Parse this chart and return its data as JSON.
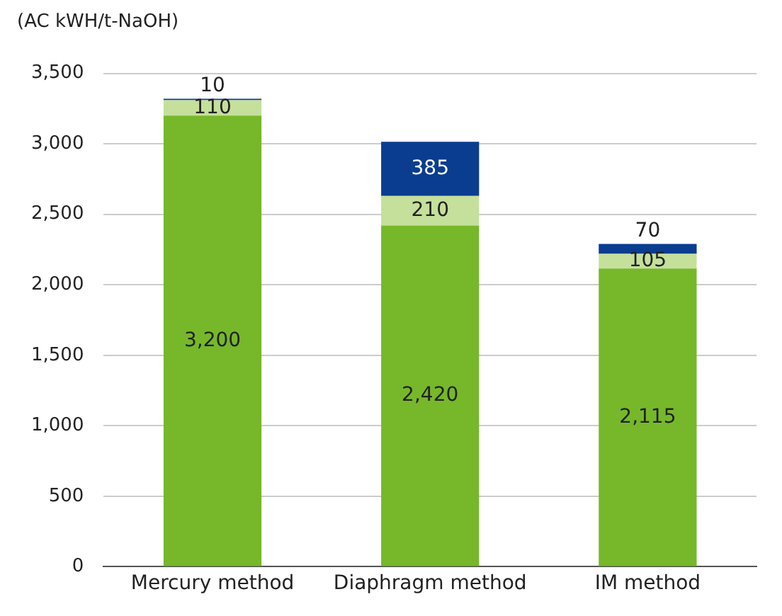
{
  "chart_data": {
    "type": "bar",
    "stacked": true,
    "ylabel": "(AC kWH/t-NaOH)",
    "categories": [
      "Mercury method",
      "Diaphragm method",
      "IM method"
    ],
    "series": [
      {
        "color": "#76b82a",
        "values": [
          3200,
          2420,
          2115
        ],
        "value_labels": [
          "3,200",
          "2,420",
          "2,115"
        ]
      },
      {
        "color": "#c5e09b",
        "values": [
          110,
          210,
          105
        ],
        "value_labels": [
          "110",
          "210",
          "105"
        ]
      },
      {
        "color": "#0a3d8f",
        "values": [
          10,
          385,
          70
        ],
        "value_labels": [
          "10",
          "385",
          "70"
        ]
      }
    ],
    "ylim": [
      0,
      3500
    ],
    "yticks": [
      {
        "value": 0,
        "label": "0"
      },
      {
        "value": 500,
        "label": "500"
      },
      {
        "value": 1000,
        "label": "1,000"
      },
      {
        "value": 1500,
        "label": "1,500"
      },
      {
        "value": 2000,
        "label": "2,000"
      },
      {
        "value": 2500,
        "label": "2,500"
      },
      {
        "value": 3000,
        "label": "3,000"
      },
      {
        "value": 3500,
        "label": "3,500"
      }
    ],
    "grid": "y",
    "legend": false
  }
}
